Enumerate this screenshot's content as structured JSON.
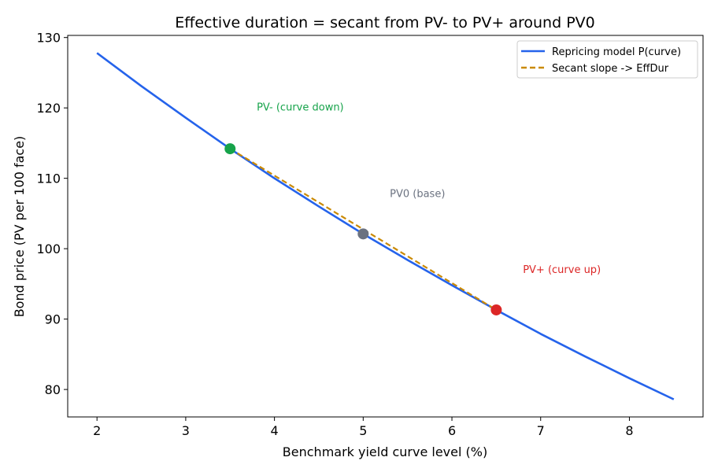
{
  "chart_data": {
    "type": "line",
    "title": "Effective duration = secant from PV- to PV+ around PV0",
    "xlabel": "Benchmark yield curve level (%)",
    "ylabel": "Bond price (PV per 100 face)",
    "xlim": [
      1.67,
      8.83
    ],
    "ylim": [
      76.1,
      130.3
    ],
    "x_ticks": [
      2,
      3,
      4,
      5,
      6,
      7,
      8
    ],
    "y_ticks": [
      80,
      90,
      100,
      110,
      120,
      130
    ],
    "grid": false,
    "legend_position": "top-right",
    "series": [
      {
        "name": "Repricing model P(curve)",
        "style": "solid",
        "color": "#2563eb",
        "x": [
          2.0,
          2.5,
          3.0,
          3.5,
          4.0,
          4.5,
          5.0,
          5.5,
          6.0,
          6.5,
          7.0,
          7.5,
          8.0,
          8.5
        ],
        "y": [
          127.8,
          123.1,
          118.6,
          114.2,
          110.0,
          106.0,
          102.1,
          98.4,
          94.8,
          91.3,
          87.9,
          84.7,
          81.6,
          78.6
        ]
      },
      {
        "name": "Secant slope -> EffDur",
        "style": "dashed",
        "color": "#ca8a04",
        "x": [
          3.5,
          6.5
        ],
        "y": [
          114.2,
          91.3
        ]
      }
    ],
    "points": [
      {
        "label": "PV- (curve down)",
        "x": 3.5,
        "y": 114.2,
        "color": "#16a34a",
        "label_x": 3.8,
        "label_y": 120.2
      },
      {
        "label": "PV0 (base)",
        "x": 5.0,
        "y": 102.1,
        "color": "#6b7280",
        "label_x": 5.3,
        "label_y": 107.9
      },
      {
        "label": "PV+ (curve up)",
        "x": 6.5,
        "y": 91.3,
        "color": "#dc2626",
        "label_x": 6.8,
        "label_y": 97.1
      }
    ]
  }
}
